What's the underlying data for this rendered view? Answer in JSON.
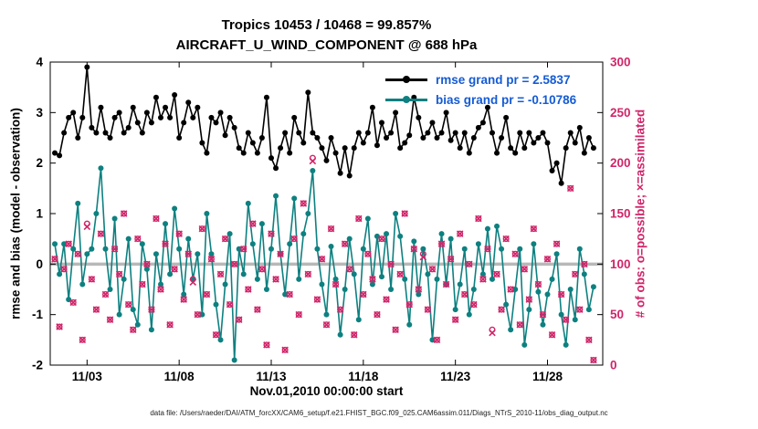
{
  "header": {
    "title_line1": "Tropics 10453 / 10468 = 99.857%",
    "title_line2": "AIRCRAFT_U_WIND_COMPONENT @ 688 hPa"
  },
  "caption": "data file: /Users/raeder/DAI/ATM_forcXX/CAM6_setup/f.e21.FHIST_BGC.f09_025.CAM6assim.011/Diags_NTrS_2010-11/obs_diag_output.nc",
  "colors": {
    "rmse": "#000000",
    "bias": "#0e8080",
    "obs": "#d02569",
    "legend_text": "#155bd4",
    "zero_line": "#b8b8b8",
    "axis": "#000000"
  },
  "chart_data": {
    "type": "line",
    "title": "Tropics 10453 / 10468 = 99.857% — AIRCRAFT_U_WIND_COMPONENT @ 688 hPa",
    "xlabel": "Nov.01,2010 00:00:00 start",
    "ylabel_left": "rmse and bias (model - observation)",
    "ylabel_right": "# of obs: o=possible; ×=assimilated",
    "xlim": [
      0,
      30
    ],
    "ylim_left": [
      -2,
      4
    ],
    "ylim_right": [
      0,
      300
    ],
    "yticks_left": [
      -2,
      -1,
      0,
      1,
      2,
      3,
      4
    ],
    "yticks_right": [
      0,
      50,
      100,
      150,
      200,
      250,
      300
    ],
    "x_ticks": [
      {
        "t": 2,
        "label": "11/03"
      },
      {
        "t": 7,
        "label": "11/08"
      },
      {
        "t": 12,
        "label": "11/13"
      },
      {
        "t": 17,
        "label": "11/18"
      },
      {
        "t": 22,
        "label": "11/23"
      },
      {
        "t": 27,
        "label": "11/28"
      }
    ],
    "grid": false,
    "legend_position": "top-right-inside",
    "zero_reference_line": 0,
    "t_start": 0.25,
    "t_step": 0.25,
    "series": [
      {
        "name": "rmse grand pr = 2.5837",
        "color": "#000000",
        "axis": "left",
        "values": [
          2.2,
          2.15,
          2.6,
          2.9,
          3.0,
          2.5,
          2.9,
          3.9,
          2.7,
          2.6,
          3.1,
          2.6,
          2.5,
          2.9,
          3.0,
          2.6,
          2.7,
          3.1,
          2.8,
          2.6,
          3.0,
          2.8,
          3.3,
          2.9,
          3.1,
          2.9,
          3.35,
          2.5,
          2.8,
          3.2,
          2.9,
          3.1,
          2.4,
          2.2,
          2.9,
          2.8,
          3.0,
          2.55,
          2.9,
          2.7,
          2.3,
          2.2,
          2.6,
          2.4,
          2.2,
          2.5,
          3.3,
          2.1,
          1.9,
          2.3,
          2.6,
          2.2,
          2.9,
          2.6,
          2.4,
          3.4,
          2.6,
          2.5,
          2.3,
          2.05,
          2.5,
          2.2,
          1.8,
          2.3,
          1.75,
          2.3,
          2.6,
          2.4,
          2.6,
          3.1,
          2.35,
          2.8,
          2.5,
          2.6,
          3.0,
          2.3,
          2.4,
          2.55,
          3.3,
          2.9,
          2.5,
          2.6,
          2.8,
          2.5,
          2.6,
          3.0,
          2.45,
          2.6,
          2.3,
          2.6,
          2.2,
          2.5,
          2.7,
          2.8,
          3.1,
          2.6,
          2.2,
          2.5,
          2.9,
          2.3,
          2.2,
          2.6,
          2.3,
          2.6,
          2.4,
          2.5,
          2.6,
          2.4,
          1.85,
          2.0,
          1.6,
          2.3,
          2.6,
          2.4,
          2.7,
          2.2,
          2.5,
          2.3
        ]
      },
      {
        "name": "bias grand pr = -0.10786",
        "color": "#0e8080",
        "axis": "left",
        "values": [
          0.4,
          -0.2,
          0.4,
          -0.7,
          0.3,
          1.2,
          -0.4,
          0.2,
          0.3,
          1.0,
          1.9,
          0.3,
          -0.5,
          0.9,
          -1.0,
          -0.3,
          0.5,
          -0.9,
          -1.2,
          0.4,
          -0.1,
          -1.3,
          0.2,
          -0.4,
          0.8,
          -0.2,
          1.1,
          0.3,
          -0.6,
          0.5,
          -0.3,
          0.2,
          -1.0,
          1.0,
          0.2,
          -0.8,
          -1.5,
          -0.4,
          0.6,
          -1.9,
          0.3,
          -0.2,
          1.2,
          0.4,
          -0.3,
          0.8,
          -0.5,
          0.3,
          1.35,
          0.2,
          -0.6,
          0.4,
          1.3,
          -0.3,
          0.6,
          1.0,
          1.85,
          0.3,
          -0.4,
          -1.0,
          0.35,
          -0.3,
          -1.4,
          -0.5,
          0.5,
          -0.2,
          -1.1,
          0.3,
          0.9,
          -0.4,
          0.55,
          -0.25,
          0.6,
          -0.5,
          1.0,
          0.55,
          -0.3,
          -1.2,
          0.45,
          -0.6,
          0.3,
          -0.2,
          -1.5,
          -0.3,
          0.6,
          -0.4,
          0.5,
          -0.9,
          -0.4,
          0.3,
          -1.0,
          -0.5,
          0.4,
          -0.2,
          0.7,
          -0.3,
          0.75,
          0.3,
          -0.8,
          -1.3,
          -0.5,
          0.3,
          -1.6,
          -0.9,
          0.4,
          -0.55,
          -1.2,
          -0.6,
          -0.3,
          0.2,
          -1.0,
          -1.6,
          -0.5,
          -1.1,
          0.3,
          -0.2,
          -0.9,
          -0.45
        ]
      }
    ],
    "obs_counts": {
      "axis": "right",
      "possible": [
        105,
        38,
        95,
        120,
        62,
        110,
        25,
        140,
        85,
        55,
        130,
        70,
        45,
        115,
        90,
        150,
        60,
        35,
        125,
        80,
        100,
        55,
        145,
        75,
        120,
        40,
        95,
        130,
        65,
        110,
        85,
        50,
        135,
        70,
        105,
        30,
        90,
        125,
        60,
        100,
        45,
        115,
        75,
        140,
        55,
        95,
        20,
        130,
        85,
        110,
        15,
        70,
        125,
        50,
        160,
        90,
        205,
        65,
        105,
        40,
        135,
        80,
        55,
        120,
        95,
        30,
        145,
        70,
        110,
        85,
        50,
        125,
        65,
        100,
        35,
        90,
        150,
        60,
        115,
        75,
        110,
        55,
        95,
        25,
        120,
        80,
        105,
        45,
        130,
        70,
        100,
        60,
        145,
        85,
        115,
        35,
        90,
        55,
        125,
        75,
        110,
        40,
        95,
        65,
        135,
        80,
        50,
        105,
        30,
        120,
        70,
        45,
        175,
        90,
        55,
        100,
        25,
        5
      ],
      "assimilated": [
        105,
        38,
        95,
        120,
        62,
        110,
        25,
        137,
        85,
        55,
        130,
        70,
        45,
        115,
        90,
        150,
        60,
        35,
        125,
        80,
        100,
        55,
        145,
        75,
        120,
        40,
        95,
        130,
        65,
        110,
        82,
        50,
        135,
        70,
        105,
        30,
        90,
        125,
        60,
        100,
        45,
        115,
        75,
        140,
        55,
        95,
        20,
        130,
        85,
        110,
        15,
        70,
        125,
        50,
        160,
        90,
        202,
        65,
        105,
        40,
        135,
        80,
        55,
        120,
        95,
        30,
        145,
        70,
        110,
        85,
        50,
        125,
        65,
        100,
        35,
        90,
        150,
        60,
        115,
        75,
        107,
        55,
        95,
        25,
        120,
        80,
        105,
        45,
        130,
        70,
        100,
        60,
        145,
        85,
        115,
        32,
        90,
        55,
        125,
        75,
        110,
        40,
        95,
        65,
        135,
        80,
        50,
        105,
        30,
        120,
        70,
        45,
        175,
        90,
        55,
        100,
        25,
        5
      ]
    }
  }
}
